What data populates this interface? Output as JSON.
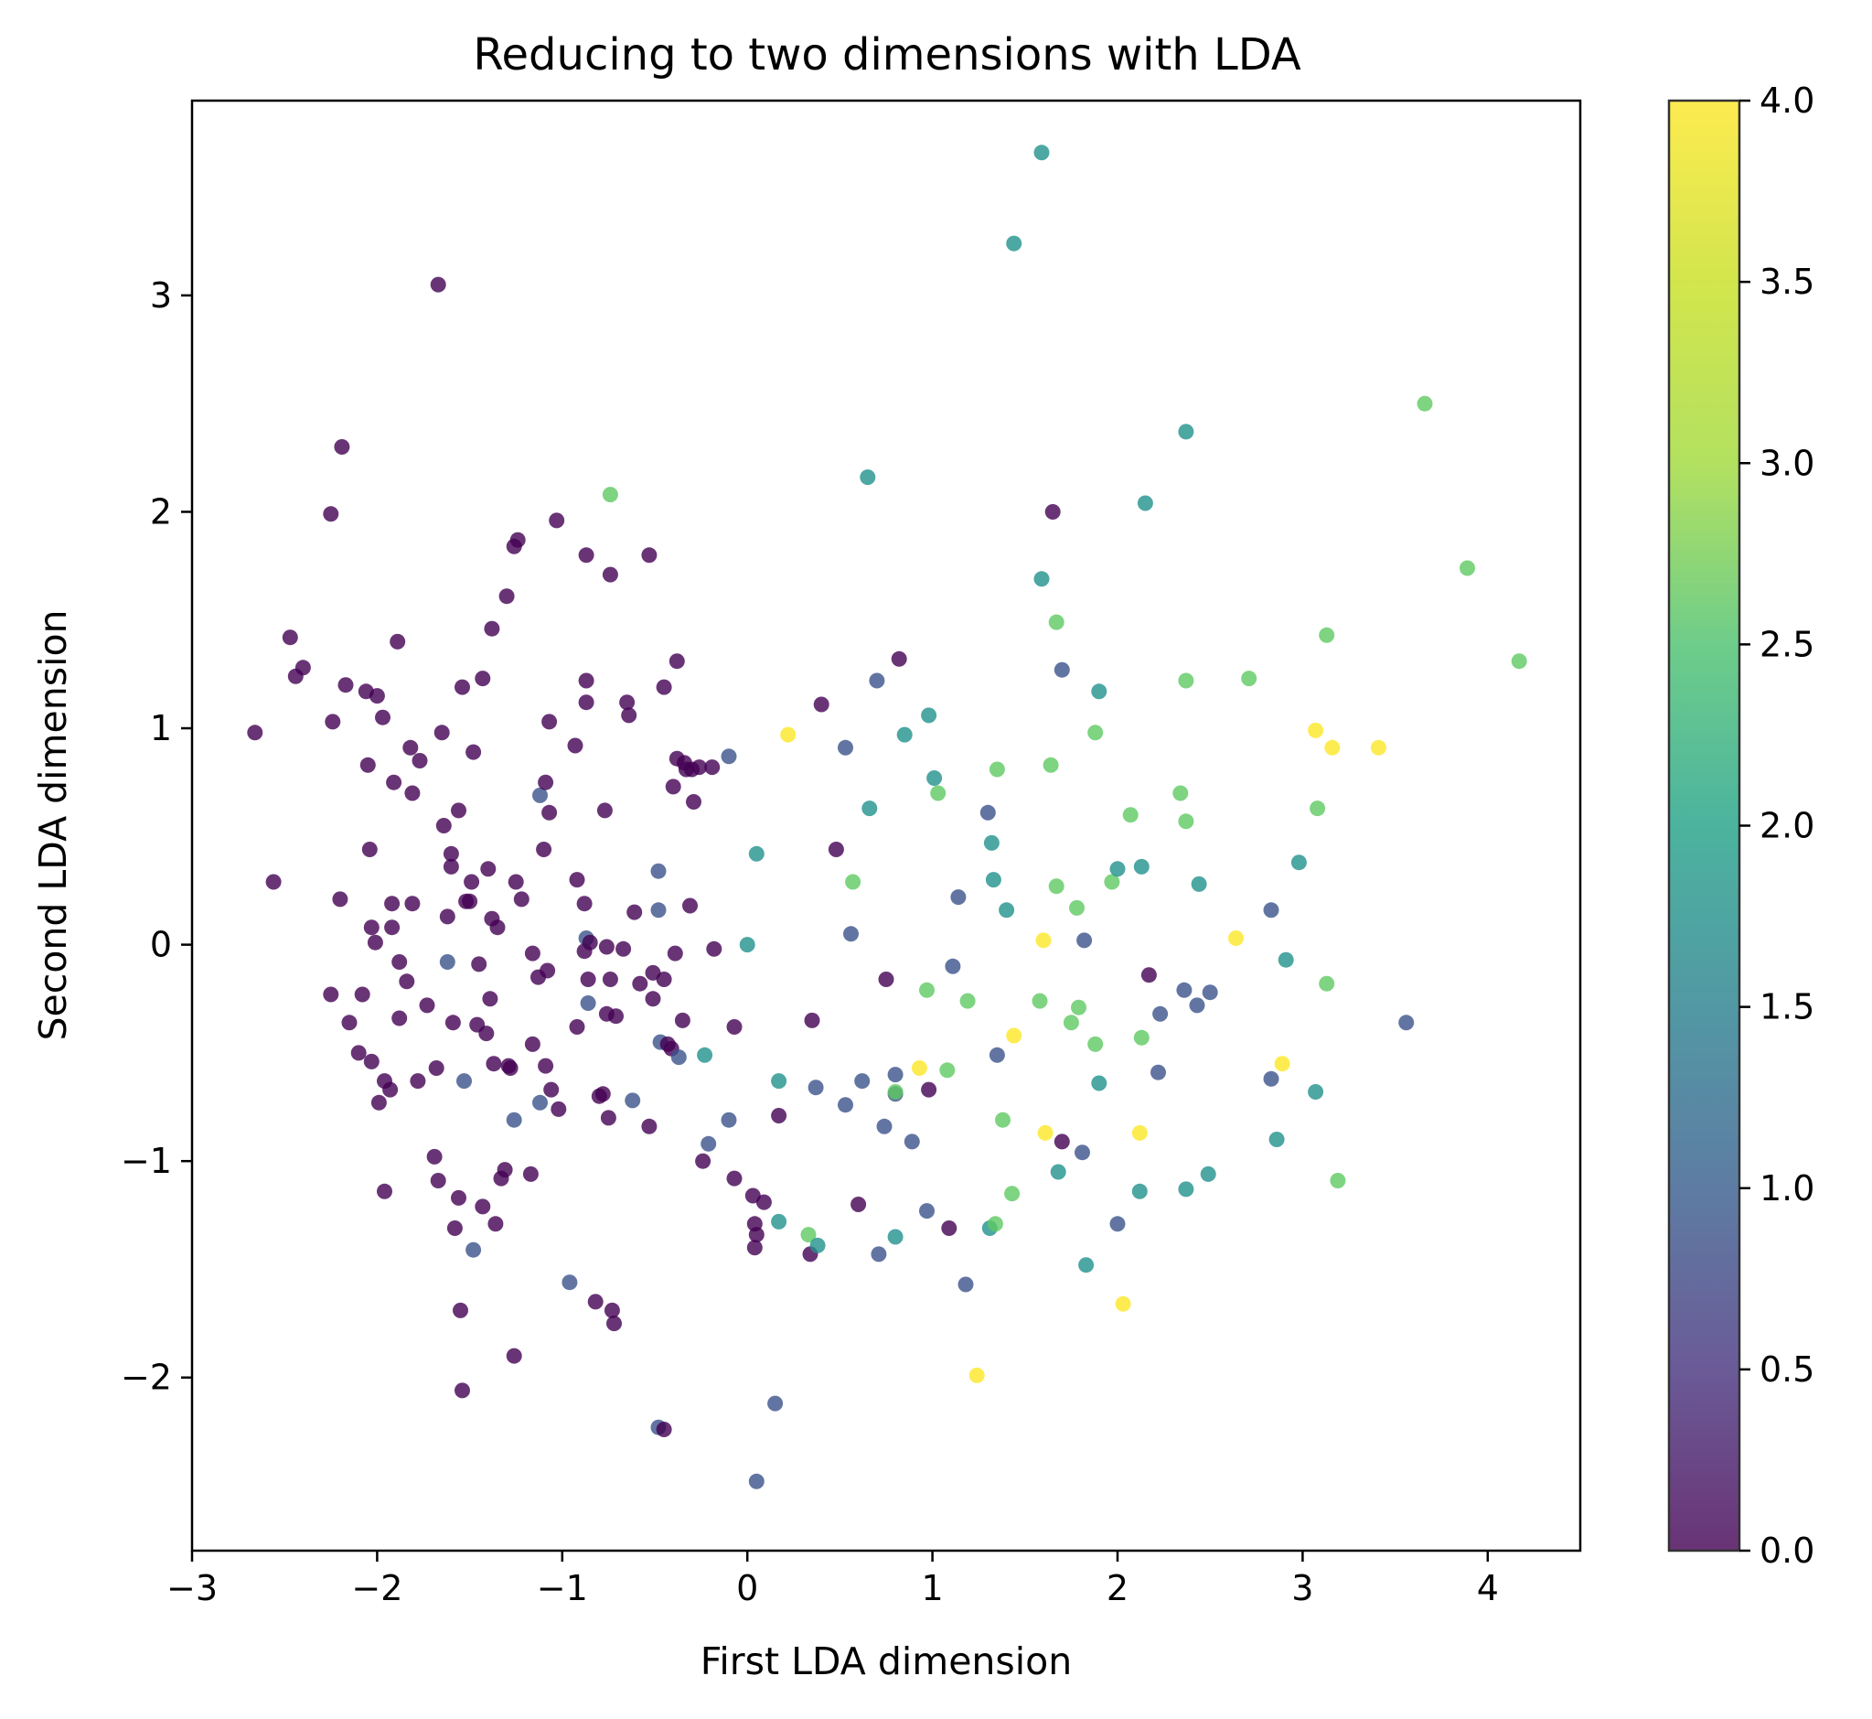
{
  "chart_data": {
    "type": "scatter",
    "title": "Reducing to two dimensions with LDA",
    "xlabel": "First LDA dimension",
    "ylabel": "Second LDA dimension",
    "xlim": [
      -3.0,
      4.5
    ],
    "ylim": [
      -2.8,
      3.9
    ],
    "xticks": [
      -3,
      -2,
      -1,
      0,
      1,
      2,
      3,
      4
    ],
    "xtick_labels": [
      "−3",
      "−2",
      "−1",
      "0",
      "1",
      "2",
      "3",
      "4"
    ],
    "yticks": [
      -2,
      -1,
      0,
      1,
      2,
      3
    ],
    "ytick_labels": [
      "−2",
      "−1",
      "0",
      "1",
      "2",
      "3"
    ],
    "grid": false,
    "colormap": "viridis",
    "colorbar": {
      "range": [
        0.0,
        4.0
      ],
      "ticks": [
        0.0,
        0.5,
        1.0,
        1.5,
        2.0,
        2.5,
        3.0,
        3.5,
        4.0
      ],
      "tick_labels": [
        "0.0",
        "0.5",
        "1.0",
        "1.5",
        "2.0",
        "2.5",
        "3.0",
        "3.5",
        "4.0"
      ]
    },
    "points": [
      [
        -2.66,
        0.98,
        0
      ],
      [
        -2.56,
        0.29,
        0
      ],
      [
        -2.47,
        1.42,
        0
      ],
      [
        -2.44,
        1.24,
        0
      ],
      [
        -2.4,
        1.28,
        0
      ],
      [
        -2.25,
        1.99,
        0
      ],
      [
        -2.24,
        1.03,
        0
      ],
      [
        -2.25,
        -0.23,
        0
      ],
      [
        -2.2,
        0.21,
        0
      ],
      [
        -2.19,
        2.3,
        0
      ],
      [
        -2.17,
        1.2,
        0
      ],
      [
        -2.15,
        -0.36,
        0
      ],
      [
        -2.1,
        -0.5,
        0
      ],
      [
        -2.08,
        -0.23,
        0
      ],
      [
        -2.06,
        1.17,
        0
      ],
      [
        -2.05,
        0.83,
        0
      ],
      [
        -2.04,
        0.44,
        0
      ],
      [
        -2.03,
        0.08,
        0
      ],
      [
        -2.03,
        -0.54,
        0
      ],
      [
        -2.01,
        0.01,
        0
      ],
      [
        -2.0,
        1.15,
        0
      ],
      [
        -1.99,
        -0.73,
        0
      ],
      [
        -1.97,
        1.05,
        0
      ],
      [
        -1.96,
        -0.63,
        0
      ],
      [
        -1.96,
        -1.14,
        0
      ],
      [
        -1.93,
        -0.67,
        0
      ],
      [
        -1.92,
        0.19,
        0
      ],
      [
        -1.92,
        0.08,
        0
      ],
      [
        -1.91,
        0.75,
        0
      ],
      [
        -1.89,
        1.4,
        0
      ],
      [
        -1.88,
        -0.08,
        0
      ],
      [
        -1.88,
        -0.34,
        0
      ],
      [
        -1.84,
        -0.17,
        0
      ],
      [
        -1.82,
        0.91,
        0
      ],
      [
        -1.81,
        0.7,
        0
      ],
      [
        -1.81,
        0.19,
        0
      ],
      [
        -1.78,
        -0.63,
        0
      ],
      [
        -1.77,
        0.85,
        0
      ],
      [
        -1.73,
        -0.28,
        0
      ],
      [
        -1.69,
        -0.98,
        0
      ],
      [
        -1.68,
        -0.57,
        0
      ],
      [
        -1.67,
        -1.09,
        0
      ],
      [
        -1.67,
        3.05,
        0
      ],
      [
        -1.65,
        0.98,
        0
      ],
      [
        -1.64,
        0.55,
        0
      ],
      [
        -1.62,
        0.13,
        0
      ],
      [
        -1.62,
        -0.08,
        1
      ],
      [
        -1.6,
        0.42,
        0
      ],
      [
        -1.6,
        0.36,
        0
      ],
      [
        -1.59,
        -0.36,
        0
      ],
      [
        -1.58,
        -1.31,
        0
      ],
      [
        -1.56,
        -1.17,
        0
      ],
      [
        -1.56,
        0.62,
        0
      ],
      [
        -1.55,
        -1.69,
        0
      ],
      [
        -1.54,
        1.19,
        0
      ],
      [
        -1.54,
        -2.06,
        0
      ],
      [
        -1.53,
        -0.63,
        1
      ],
      [
        -1.52,
        0.2,
        0
      ],
      [
        -1.5,
        0.2,
        0
      ],
      [
        -1.49,
        0.29,
        0
      ],
      [
        -1.48,
        0.89,
        0
      ],
      [
        -1.48,
        -1.41,
        1
      ],
      [
        -1.46,
        -0.37,
        0
      ],
      [
        -1.45,
        -0.09,
        0
      ],
      [
        -1.43,
        1.23,
        0
      ],
      [
        -1.43,
        -1.21,
        0
      ],
      [
        -1.41,
        -0.41,
        0
      ],
      [
        -1.4,
        0.35,
        0
      ],
      [
        -1.39,
        -0.25,
        0
      ],
      [
        -1.38,
        1.46,
        0
      ],
      [
        -1.38,
        0.12,
        0
      ],
      [
        -1.37,
        -0.55,
        0
      ],
      [
        -1.36,
        -1.29,
        0
      ],
      [
        -1.35,
        0.08,
        0
      ],
      [
        -1.33,
        -1.08,
        0
      ],
      [
        -1.31,
        -1.04,
        0
      ],
      [
        -1.3,
        1.61,
        0
      ],
      [
        -1.29,
        -0.56,
        0
      ],
      [
        -1.28,
        -0.57,
        0
      ],
      [
        -1.26,
        1.84,
        0
      ],
      [
        -1.26,
        -1.9,
        0
      ],
      [
        -1.26,
        -0.81,
        1
      ],
      [
        -1.25,
        0.29,
        0
      ],
      [
        -1.24,
        1.87,
        0
      ],
      [
        -1.22,
        0.21,
        0
      ],
      [
        -1.17,
        -1.06,
        0
      ],
      [
        -1.16,
        -0.04,
        0
      ],
      [
        -1.16,
        -0.46,
        0
      ],
      [
        -1.13,
        -0.15,
        0
      ],
      [
        -1.12,
        -0.73,
        1
      ],
      [
        -1.12,
        0.69,
        1
      ],
      [
        -1.1,
        0.44,
        0
      ],
      [
        -1.09,
        0.75,
        0
      ],
      [
        -1.09,
        -0.56,
        0
      ],
      [
        -1.08,
        -0.12,
        0
      ],
      [
        -1.07,
        1.03,
        0
      ],
      [
        -1.07,
        0.61,
        0
      ],
      [
        -1.06,
        -0.67,
        0
      ],
      [
        -1.03,
        1.96,
        0
      ],
      [
        -1.02,
        -0.76,
        0
      ],
      [
        -0.96,
        -1.56,
        1
      ],
      [
        -0.93,
        0.92,
        0
      ],
      [
        -0.92,
        0.3,
        0
      ],
      [
        -0.92,
        -0.38,
        0
      ],
      [
        -0.88,
        -0.03,
        0
      ],
      [
        -0.88,
        0.19,
        0
      ],
      [
        -0.87,
        1.8,
        0
      ],
      [
        -0.87,
        1.12,
        0
      ],
      [
        -0.87,
        1.22,
        0
      ],
      [
        -0.87,
        0.03,
        1
      ],
      [
        -0.86,
        -0.16,
        0
      ],
      [
        -0.86,
        -0.27,
        1
      ],
      [
        -0.85,
        0.01,
        0
      ],
      [
        -0.82,
        -1.65,
        0
      ],
      [
        -0.8,
        -0.7,
        0
      ],
      [
        -0.78,
        -0.69,
        0
      ],
      [
        -0.77,
        0.62,
        0
      ],
      [
        -0.76,
        -0.32,
        0
      ],
      [
        -0.76,
        -0.01,
        0
      ],
      [
        -0.75,
        -0.8,
        0
      ],
      [
        -0.74,
        2.08,
        3
      ],
      [
        -0.74,
        1.71,
        0
      ],
      [
        -0.74,
        -0.16,
        0
      ],
      [
        -0.73,
        -1.69,
        0
      ],
      [
        -0.72,
        -1.75,
        0
      ],
      [
        -0.71,
        -0.33,
        0
      ],
      [
        -0.67,
        -0.02,
        0
      ],
      [
        -0.65,
        1.12,
        0
      ],
      [
        -0.64,
        1.06,
        0
      ],
      [
        -0.62,
        -0.72,
        1
      ],
      [
        -0.61,
        0.15,
        0
      ],
      [
        -0.58,
        -0.18,
        0
      ],
      [
        -0.53,
        1.8,
        0
      ],
      [
        -0.53,
        -0.84,
        0
      ],
      [
        -0.51,
        -0.13,
        0
      ],
      [
        -0.51,
        -0.25,
        0
      ],
      [
        -0.48,
        -2.23,
        1
      ],
      [
        -0.48,
        0.34,
        1
      ],
      [
        -0.48,
        0.16,
        1
      ],
      [
        -0.47,
        -0.45,
        1
      ],
      [
        -0.45,
        1.19,
        0
      ],
      [
        -0.45,
        -0.16,
        0
      ],
      [
        -0.45,
        -2.24,
        0
      ],
      [
        -0.43,
        -0.46,
        0
      ],
      [
        -0.41,
        -0.48,
        0
      ],
      [
        -0.4,
        0.73,
        0
      ],
      [
        -0.39,
        -0.04,
        0
      ],
      [
        -0.38,
        1.31,
        0
      ],
      [
        -0.38,
        0.86,
        0
      ],
      [
        -0.37,
        -0.52,
        1
      ],
      [
        -0.35,
        -0.35,
        0
      ],
      [
        -0.34,
        0.84,
        0
      ],
      [
        -0.33,
        0.81,
        0
      ],
      [
        -0.31,
        0.18,
        0
      ],
      [
        -0.3,
        0.81,
        0
      ],
      [
        -0.29,
        0.66,
        0
      ],
      [
        -0.26,
        0.82,
        0
      ],
      [
        -0.24,
        -1.0,
        0
      ],
      [
        -0.23,
        -0.51,
        2
      ],
      [
        -0.21,
        -0.92,
        1
      ],
      [
        -0.19,
        0.82,
        0
      ],
      [
        -0.18,
        -0.02,
        0
      ],
      [
        -0.1,
        0.87,
        1
      ],
      [
        -0.1,
        -0.81,
        1
      ],
      [
        -0.07,
        -0.38,
        0
      ],
      [
        -0.07,
        -1.08,
        0
      ],
      [
        0.0,
        0.0,
        2
      ],
      [
        0.03,
        -1.16,
        0
      ],
      [
        0.04,
        -1.29,
        0
      ],
      [
        0.04,
        -1.4,
        0
      ],
      [
        0.05,
        -2.48,
        1
      ],
      [
        0.05,
        0.42,
        2
      ],
      [
        0.05,
        -1.34,
        0
      ],
      [
        0.09,
        -1.19,
        0
      ],
      [
        0.15,
        -2.12,
        1
      ],
      [
        0.17,
        -0.63,
        2
      ],
      [
        0.17,
        -0.79,
        0
      ],
      [
        0.17,
        -1.28,
        2
      ],
      [
        0.22,
        0.97,
        4
      ],
      [
        0.33,
        -1.34,
        3
      ],
      [
        0.34,
        -1.43,
        0
      ],
      [
        0.35,
        -0.35,
        0
      ],
      [
        0.37,
        -0.66,
        1
      ],
      [
        0.38,
        -1.39,
        2
      ],
      [
        0.4,
        1.11,
        0
      ],
      [
        0.48,
        0.44,
        0
      ],
      [
        0.53,
        0.91,
        1
      ],
      [
        0.53,
        -0.74,
        1
      ],
      [
        0.56,
        0.05,
        1
      ],
      [
        0.57,
        0.29,
        3
      ],
      [
        0.6,
        -1.2,
        0
      ],
      [
        0.62,
        -0.63,
        1
      ],
      [
        0.65,
        2.16,
        2
      ],
      [
        0.66,
        0.63,
        2
      ],
      [
        0.7,
        1.22,
        1
      ],
      [
        0.71,
        -1.43,
        1
      ],
      [
        0.74,
        -0.84,
        1
      ],
      [
        0.75,
        -0.16,
        0
      ],
      [
        0.8,
        -0.6,
        1
      ],
      [
        0.8,
        -0.69,
        1
      ],
      [
        0.8,
        -0.68,
        3
      ],
      [
        0.8,
        -1.35,
        2
      ],
      [
        0.82,
        1.32,
        0
      ],
      [
        0.85,
        0.97,
        2
      ],
      [
        0.89,
        -0.91,
        1
      ],
      [
        0.93,
        -0.57,
        4
      ],
      [
        0.97,
        -1.23,
        1
      ],
      [
        0.97,
        -0.21,
        3
      ],
      [
        0.98,
        1.06,
        2
      ],
      [
        0.98,
        -0.67,
        0
      ],
      [
        1.01,
        0.77,
        2
      ],
      [
        1.03,
        0.7,
        3
      ],
      [
        1.08,
        -0.58,
        3
      ],
      [
        1.09,
        -1.31,
        0
      ],
      [
        1.11,
        -0.1,
        1
      ],
      [
        1.14,
        0.22,
        1
      ],
      [
        1.18,
        -1.57,
        1
      ],
      [
        1.19,
        -0.26,
        3
      ],
      [
        1.24,
        -1.99,
        4
      ],
      [
        1.3,
        0.61,
        1
      ],
      [
        1.31,
        -1.31,
        2
      ],
      [
        1.32,
        0.47,
        2
      ],
      [
        1.33,
        0.3,
        2
      ],
      [
        1.34,
        -1.29,
        3
      ],
      [
        1.35,
        0.81,
        3
      ],
      [
        1.35,
        -0.51,
        1
      ],
      [
        1.38,
        -0.81,
        3
      ],
      [
        1.4,
        0.16,
        2
      ],
      [
        1.43,
        -1.15,
        3
      ],
      [
        1.44,
        3.24,
        2
      ],
      [
        1.44,
        -0.42,
        4
      ],
      [
        1.58,
        -0.26,
        3
      ],
      [
        1.59,
        3.66,
        2
      ],
      [
        1.59,
        1.69,
        2
      ],
      [
        1.6,
        0.02,
        4
      ],
      [
        1.61,
        -0.87,
        4
      ],
      [
        1.64,
        0.83,
        3
      ],
      [
        1.65,
        2.0,
        0
      ],
      [
        1.67,
        1.49,
        3
      ],
      [
        1.67,
        0.27,
        3
      ],
      [
        1.68,
        -1.05,
        2
      ],
      [
        1.7,
        1.27,
        1
      ],
      [
        1.7,
        -0.91,
        0
      ],
      [
        1.75,
        -0.36,
        3
      ],
      [
        1.78,
        0.17,
        3
      ],
      [
        1.79,
        -0.29,
        3
      ],
      [
        1.81,
        -0.96,
        1
      ],
      [
        1.82,
        0.02,
        1
      ],
      [
        1.83,
        -1.48,
        2
      ],
      [
        1.88,
        0.98,
        3
      ],
      [
        1.88,
        -0.46,
        3
      ],
      [
        1.9,
        1.17,
        2
      ],
      [
        1.9,
        -0.64,
        2
      ],
      [
        1.97,
        0.29,
        3
      ],
      [
        2.0,
        -1.29,
        1
      ],
      [
        2.0,
        0.35,
        2
      ],
      [
        2.03,
        -1.66,
        4
      ],
      [
        2.07,
        0.6,
        3
      ],
      [
        2.12,
        -0.87,
        4
      ],
      [
        2.12,
        -1.14,
        2
      ],
      [
        2.13,
        0.36,
        2
      ],
      [
        2.13,
        -0.43,
        3
      ],
      [
        2.15,
        2.04,
        2
      ],
      [
        2.17,
        -0.14,
        0
      ],
      [
        2.22,
        -0.59,
        1
      ],
      [
        2.23,
        -0.32,
        1
      ],
      [
        2.34,
        0.7,
        3
      ],
      [
        2.36,
        -0.21,
        1
      ],
      [
        2.37,
        2.37,
        2
      ],
      [
        2.37,
        0.57,
        3
      ],
      [
        2.37,
        1.22,
        3
      ],
      [
        2.37,
        -1.13,
        2
      ],
      [
        2.43,
        -0.28,
        1
      ],
      [
        2.44,
        0.28,
        2
      ],
      [
        2.49,
        -1.06,
        2
      ],
      [
        2.5,
        -0.22,
        1
      ],
      [
        2.64,
        0.03,
        4
      ],
      [
        2.71,
        1.23,
        3
      ],
      [
        2.83,
        -0.62,
        1
      ],
      [
        2.83,
        0.16,
        1
      ],
      [
        2.86,
        -0.9,
        2
      ],
      [
        2.89,
        -0.55,
        4
      ],
      [
        2.91,
        -0.07,
        2
      ],
      [
        2.98,
        0.38,
        2
      ],
      [
        3.07,
        -0.68,
        2
      ],
      [
        3.07,
        0.99,
        4
      ],
      [
        3.08,
        0.63,
        3
      ],
      [
        3.13,
        -0.18,
        3
      ],
      [
        3.13,
        1.43,
        3
      ],
      [
        3.16,
        0.91,
        4
      ],
      [
        3.19,
        -1.09,
        3
      ],
      [
        3.41,
        0.91,
        4
      ],
      [
        3.56,
        -0.36,
        1
      ],
      [
        3.66,
        2.5,
        3
      ],
      [
        3.89,
        1.74,
        3
      ],
      [
        4.17,
        1.31,
        3
      ]
    ]
  }
}
